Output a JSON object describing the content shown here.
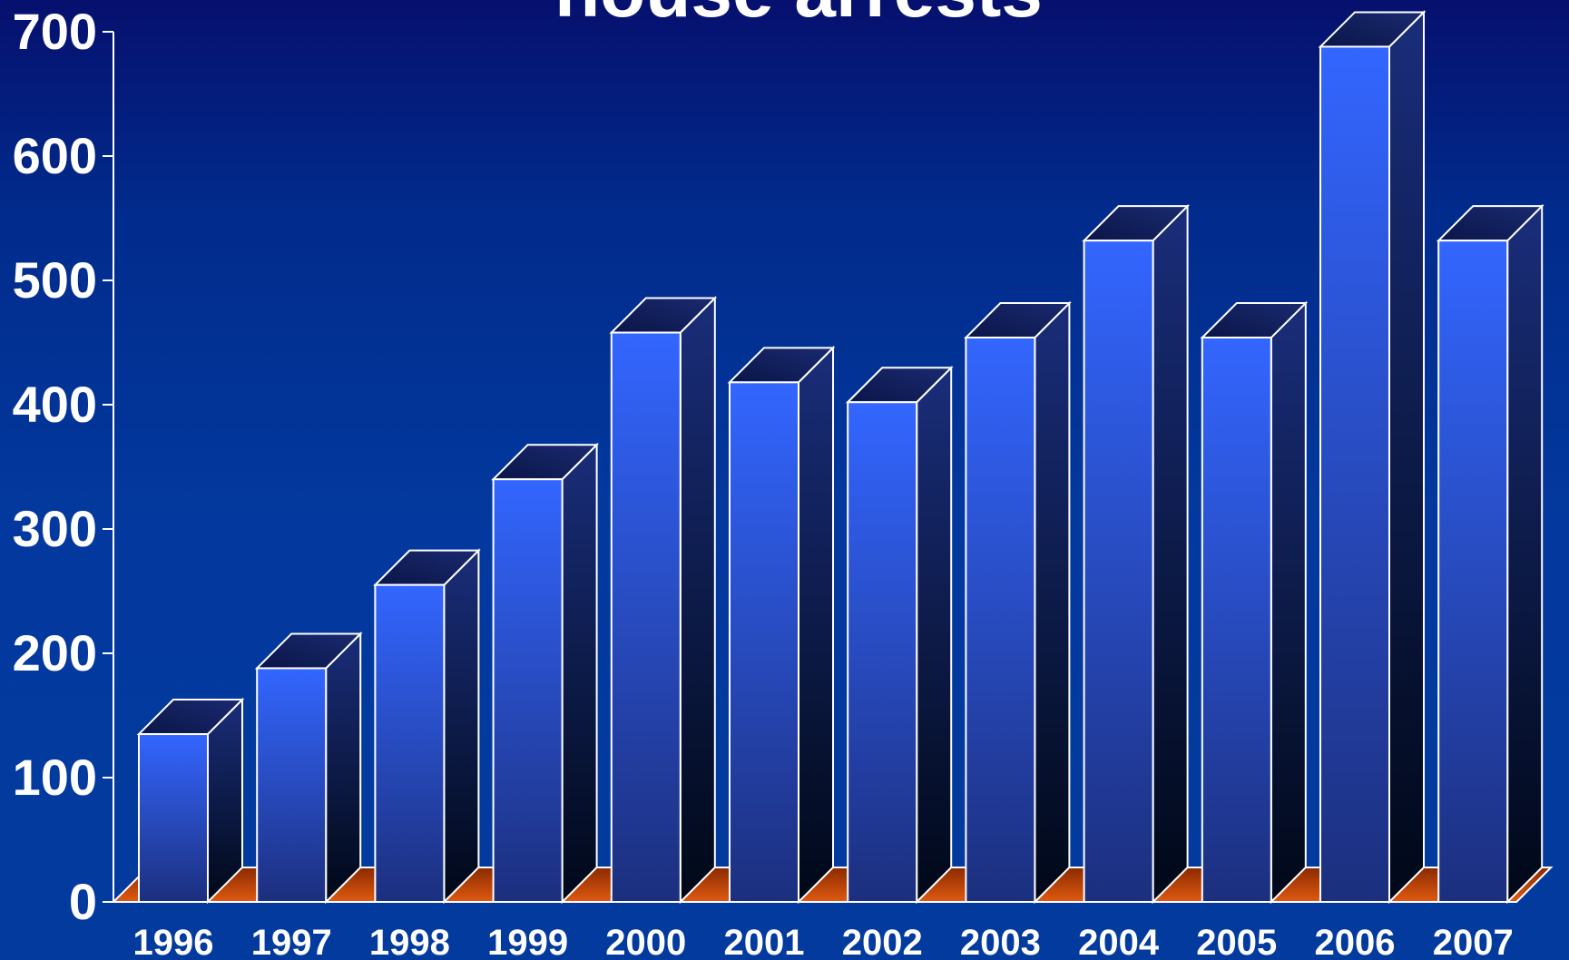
{
  "chart_data": {
    "type": "bar",
    "title": "house arrests",
    "categories": [
      "1996",
      "1997",
      "1998",
      "1999",
      "2000",
      "2001",
      "2002",
      "2003",
      "2004",
      "2005",
      "2006",
      "2007"
    ],
    "values": [
      135,
      188,
      255,
      340,
      458,
      418,
      402,
      454,
      532,
      454,
      688,
      532
    ],
    "ylim": [
      0,
      700
    ],
    "yticks": [
      "0",
      "100",
      "200",
      "300",
      "400",
      "500",
      "600",
      "700"
    ],
    "grid": false,
    "style": "3d",
    "colors": {
      "bar_front_top": "#3366ff",
      "bar_front_bottom": "#1c2f7e",
      "bar_side_top": "#1a2d7a",
      "bar_side_bottom": "#000817",
      "bar_top_face": "#1a2a70",
      "floor": "#e05a10",
      "outline": "#ffffff"
    }
  }
}
